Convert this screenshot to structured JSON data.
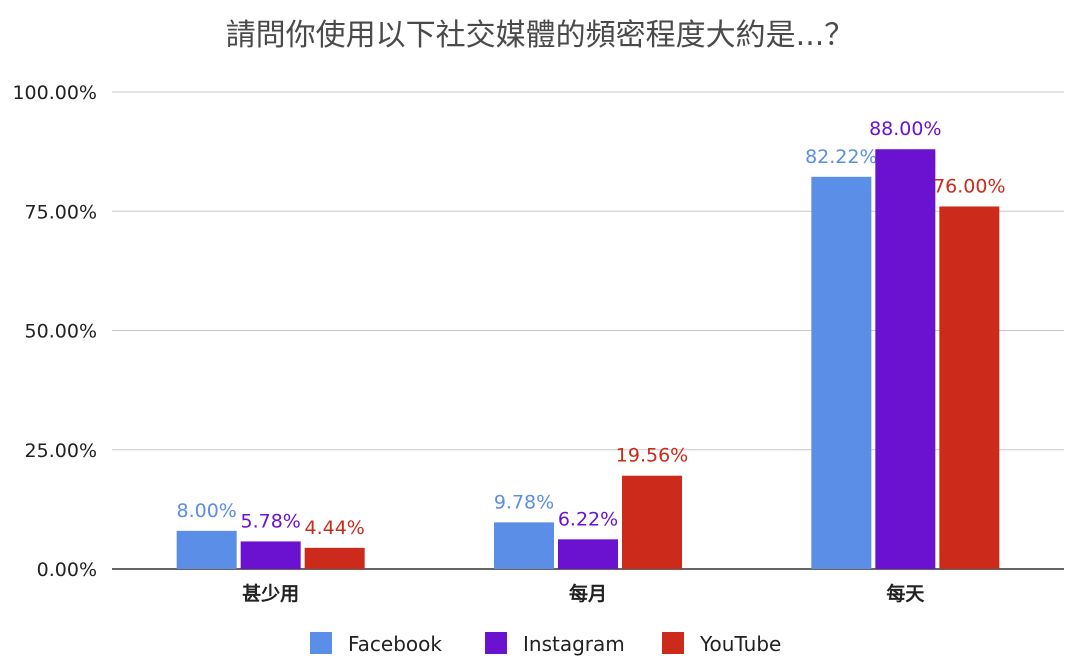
{
  "chart_data": {
    "type": "bar",
    "title": "請問你使用以下社交媒體的頻密程度大約是...？",
    "categories": [
      "甚少用",
      "每月",
      "每天"
    ],
    "series": [
      {
        "name": "Facebook",
        "color": "#5b8ee6",
        "values": [
          8.0,
          9.78,
          82.22
        ],
        "labels": [
          "8.00%",
          "9.78%",
          "82.22%"
        ]
      },
      {
        "name": "Instagram",
        "color": "#6a12cf",
        "values": [
          5.78,
          6.22,
          88.0
        ],
        "labels": [
          "5.78%",
          "6.22%",
          "88.00%"
        ]
      },
      {
        "name": "YouTube",
        "color": "#cc2a1a",
        "values": [
          4.44,
          19.56,
          76.0
        ],
        "labels": [
          "4.44%",
          "19.56%",
          "76.00%"
        ]
      }
    ],
    "yticks": [
      "0.00%",
      "25.00%",
      "50.00%",
      "75.00%",
      "100.00%"
    ],
    "ylim": [
      0,
      100
    ],
    "grid": true,
    "legend": "bottom"
  }
}
